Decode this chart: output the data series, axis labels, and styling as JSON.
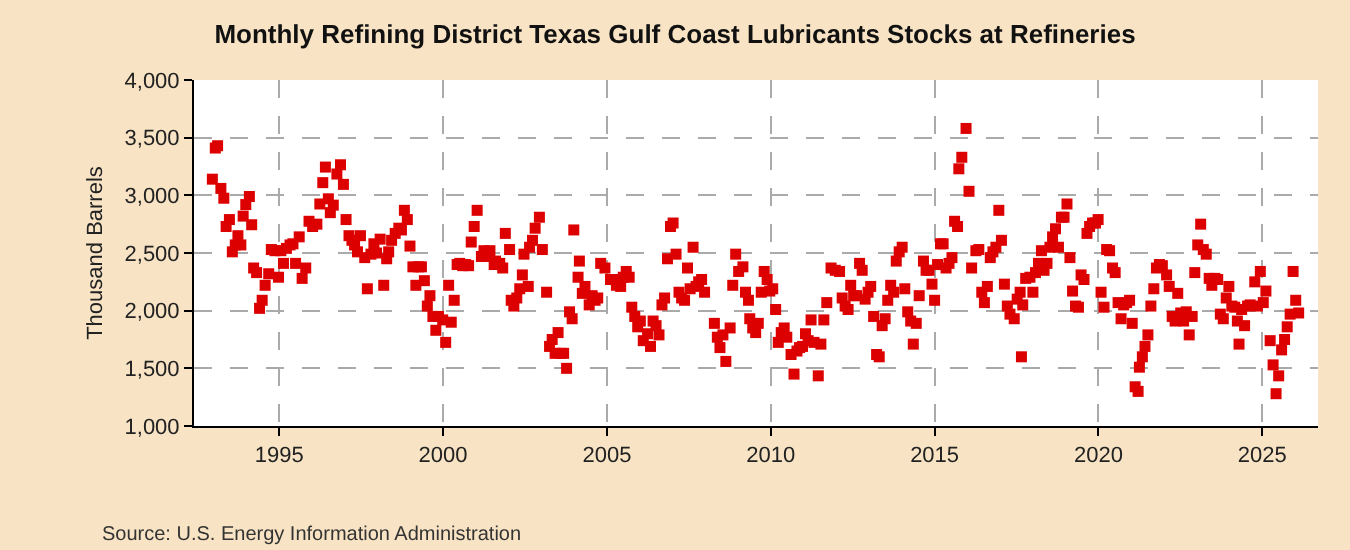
{
  "chart_data": {
    "type": "scatter",
    "title": "Monthly Refining District Texas Gulf Coast Lubricants Stocks at Refineries",
    "ylabel": "Thousand Barrels",
    "annotations": [
      "Source: U.S. Energy Information Administration"
    ],
    "marker": "square",
    "grid": true,
    "xlim": [
      1992.4,
      2026.7
    ],
    "xticks": [
      1995,
      2000,
      2005,
      2010,
      2015,
      2020,
      2025
    ],
    "ylim": [
      1000,
      4000
    ],
    "yticks": [
      {
        "value": 1000,
        "label": "1,000"
      },
      {
        "value": 1500,
        "label": "1,500"
      },
      {
        "value": 2000,
        "label": "2,000"
      },
      {
        "value": 2500,
        "label": "2,500"
      },
      {
        "value": 3000,
        "label": "3,000"
      },
      {
        "value": 3500,
        "label": "3,500"
      },
      {
        "value": 4000,
        "label": "4,000"
      }
    ],
    "series": [
      {
        "color": "#dd0000",
        "x": [
          1992.96,
          1993.05,
          1993.12,
          1993.22,
          1993.31,
          1993.38,
          1993.48,
          1993.57,
          1993.66,
          1993.74,
          1993.83,
          1993.9,
          1993.98,
          1994.09,
          1994.16,
          1994.22,
          1994.31,
          1994.4,
          1994.48,
          1994.57,
          1994.68,
          1994.76,
          1994.87,
          1994.98,
          1995.05,
          1995.13,
          1995.22,
          1995.33,
          1995.42,
          1995.5,
          1995.61,
          1995.7,
          1995.81,
          1995.91,
          1996.02,
          1996.15,
          1996.24,
          1996.33,
          1996.41,
          1996.5,
          1996.56,
          1996.65,
          1996.76,
          1996.87,
          1996.96,
          1997.04,
          1997.13,
          1997.22,
          1997.3,
          1997.39,
          1997.48,
          1997.61,
          1997.69,
          1997.8,
          1997.89,
          1997.97,
          1998.08,
          1998.19,
          1998.28,
          1998.34,
          1998.43,
          1998.54,
          1998.65,
          1998.73,
          1998.82,
          1998.91,
          1998.99,
          1999.08,
          1999.17,
          1999.25,
          1999.34,
          1999.43,
          1999.52,
          1999.6,
          1999.69,
          1999.78,
          1999.86,
          1999.99,
          2000.08,
          2000.17,
          2000.25,
          2000.34,
          2000.43,
          2000.51,
          2000.6,
          2000.69,
          2000.78,
          2000.86,
          2000.95,
          2001.04,
          2001.17,
          2001.25,
          2001.34,
          2001.43,
          2001.56,
          2001.6,
          2001.73,
          2001.82,
          2001.9,
          2002.03,
          2002.08,
          2002.16,
          2002.25,
          2002.34,
          2002.42,
          2002.47,
          2002.6,
          2002.64,
          2002.73,
          2002.81,
          2002.94,
          2003.03,
          2003.16,
          2003.25,
          2003.33,
          2003.42,
          2003.51,
          2003.6,
          2003.68,
          2003.77,
          2003.86,
          2003.94,
          2003.99,
          2004.12,
          2004.16,
          2004.25,
          2004.33,
          2004.46,
          2004.55,
          2004.64,
          2004.72,
          2004.81,
          2004.94,
          2005.11,
          2005.29,
          2005.37,
          2005.42,
          2005.5,
          2005.59,
          2005.68,
          2005.76,
          2005.85,
          2005.94,
          2006.02,
          2006.11,
          2006.24,
          2006.33,
          2006.41,
          2006.5,
          2006.59,
          2006.68,
          2006.76,
          2006.85,
          2006.94,
          2007.02,
          2007.11,
          2007.2,
          2007.28,
          2007.37,
          2007.46,
          2007.54,
          2007.63,
          2007.72,
          2007.8,
          2007.89,
          2007.98,
          2008.28,
          2008.37,
          2008.45,
          2008.54,
          2008.63,
          2008.76,
          2008.84,
          2008.93,
          2009.02,
          2009.15,
          2009.23,
          2009.32,
          2009.36,
          2009.45,
          2009.54,
          2009.62,
          2009.71,
          2009.8,
          2009.89,
          2009.97,
          2010.06,
          2010.15,
          2010.23,
          2010.32,
          2010.41,
          2010.49,
          2010.62,
          2010.71,
          2010.8,
          2010.88,
          2010.97,
          2011.06,
          2011.14,
          2011.23,
          2011.32,
          2011.45,
          2011.53,
          2011.62,
          2011.71,
          2011.84,
          2011.97,
          2012.1,
          2012.18,
          2012.27,
          2012.36,
          2012.44,
          2012.53,
          2012.62,
          2012.71,
          2012.79,
          2012.88,
          2012.97,
          2013.05,
          2013.14,
          2013.23,
          2013.31,
          2013.4,
          2013.49,
          2013.57,
          2013.66,
          2013.75,
          2013.83,
          2013.92,
          2014.01,
          2014.09,
          2014.18,
          2014.27,
          2014.35,
          2014.44,
          2014.53,
          2014.66,
          2014.74,
          2014.83,
          2014.92,
          2015.0,
          2015.09,
          2015.18,
          2015.26,
          2015.35,
          2015.44,
          2015.53,
          2015.61,
          2015.7,
          2015.74,
          2015.83,
          2015.96,
          2016.05,
          2016.13,
          2016.26,
          2016.35,
          2016.44,
          2016.52,
          2016.61,
          2016.7,
          2016.78,
          2016.87,
          2016.96,
          2017.04,
          2017.13,
          2017.22,
          2017.3,
          2017.43,
          2017.52,
          2017.61,
          2017.65,
          2017.69,
          2017.78,
          2017.91,
          2018.0,
          2018.08,
          2018.17,
          2018.26,
          2018.34,
          2018.43,
          2018.52,
          2018.6,
          2018.69,
          2018.78,
          2018.87,
          2018.95,
          2019.04,
          2019.13,
          2019.21,
          2019.3,
          2019.39,
          2019.47,
          2019.56,
          2019.65,
          2019.73,
          2019.82,
          2019.91,
          2019.99,
          2020.08,
          2020.17,
          2020.25,
          2020.34,
          2020.43,
          2020.51,
          2020.6,
          2020.69,
          2020.77,
          2020.86,
          2020.95,
          2021.03,
          2021.12,
          2021.21,
          2021.25,
          2021.34,
          2021.42,
          2021.51,
          2021.6,
          2021.69,
          2021.77,
          2021.86,
          2021.95,
          2022.08,
          2022.16,
          2022.25,
          2022.34,
          2022.42,
          2022.51,
          2022.6,
          2022.68,
          2022.77,
          2022.86,
          2022.94,
          2023.03,
          2023.12,
          2023.2,
          2023.29,
          2023.38,
          2023.46,
          2023.55,
          2023.64,
          2023.72,
          2023.81,
          2023.9,
          2023.98,
          2024.07,
          2024.16,
          2024.24,
          2024.29,
          2024.37,
          2024.46,
          2024.55,
          2024.63,
          2024.77,
          2024.85,
          2024.94,
          2025.03,
          2025.11,
          2025.24,
          2025.33,
          2025.42,
          2025.5,
          2025.59,
          2025.68,
          2025.76,
          2025.85,
          2025.94,
          2026.02,
          2026.11
        ],
        "values": [
          3140,
          3410,
          3430,
          3060,
          2975,
          2730,
          2790,
          2510,
          2570,
          2650,
          2570,
          2820,
          2920,
          2990,
          2745,
          2370,
          2330,
          2020,
          2090,
          2220,
          2320,
          2530,
          2520,
          2290,
          2520,
          2410,
          2540,
          2570,
          2580,
          2410,
          2640,
          2280,
          2370,
          2775,
          2730,
          2750,
          2925,
          3110,
          3245,
          2970,
          2850,
          2915,
          3185,
          3265,
          3095,
          2790,
          2650,
          2610,
          2570,
          2510,
          2650,
          2460,
          2190,
          2490,
          2580,
          2500,
          2620,
          2220,
          2450,
          2510,
          2610,
          2670,
          2715,
          2700,
          2870,
          2790,
          2560,
          2380,
          2220,
          2380,
          2380,
          2260,
          2040,
          2130,
          1950,
          1830,
          1950,
          1920,
          1725,
          2220,
          1900,
          2090,
          2400,
          2410,
          2390,
          2400,
          2390,
          2595,
          2730,
          2870,
          2470,
          2520,
          2470,
          2520,
          2400,
          2430,
          2410,
          2370,
          2670,
          2530,
          2090,
          2040,
          2110,
          2190,
          2310,
          2490,
          2210,
          2550,
          2610,
          2715,
          2810,
          2530,
          2160,
          1690,
          1750,
          1630,
          1810,
          1630,
          1630,
          1500,
          1990,
          1930,
          2700,
          2290,
          2430,
          2150,
          2210,
          2050,
          2130,
          2090,
          2110,
          2410,
          2370,
          2270,
          2220,
          2270,
          2210,
          2290,
          2340,
          2290,
          2030,
          1950,
          1860,
          1910,
          1740,
          1800,
          1690,
          1910,
          1870,
          1790,
          2050,
          2110,
          2450,
          2730,
          2760,
          2490,
          2160,
          2110,
          2090,
          2370,
          2190,
          2550,
          2210,
          2250,
          2270,
          2160,
          1890,
          1770,
          1680,
          1790,
          1560,
          1850,
          2220,
          2490,
          2340,
          2380,
          2160,
          2090,
          1930,
          1850,
          1810,
          1890,
          2160,
          2340,
          2270,
          2170,
          2190,
          2010,
          1725,
          1810,
          1850,
          1770,
          1620,
          1450,
          1650,
          1680,
          1690,
          1800,
          1740,
          1920,
          1725,
          1435,
          1710,
          1920,
          2070,
          2370,
          2350,
          2340,
          2110,
          2040,
          2010,
          2220,
          2130,
          2130,
          2410,
          2350,
          2100,
          2160,
          2210,
          1950,
          1620,
          1600,
          1870,
          1930,
          2090,
          2220,
          2160,
          2430,
          2510,
          2550,
          2190,
          1990,
          1910,
          1710,
          1890,
          2130,
          2430,
          2350,
          2350,
          2230,
          2090,
          2400,
          2580,
          2580,
          2370,
          2410,
          2460,
          2775,
          2730,
          3230,
          3330,
          3580,
          3035,
          2370,
          2520,
          2530,
          2160,
          2070,
          2210,
          2460,
          2510,
          2550,
          2870,
          2610,
          2230,
          2040,
          1970,
          1930,
          2100,
          2160,
          1600,
          2050,
          2280,
          2290,
          2160,
          2330,
          2410,
          2520,
          2350,
          2410,
          2550,
          2640,
          2710,
          2550,
          2810,
          2810,
          2925,
          2460,
          2170,
          2040,
          2030,
          2310,
          2270,
          2670,
          2730,
          2760,
          2760,
          2790,
          2160,
          2030,
          2530,
          2520,
          2370,
          2330,
          2070,
          1930,
          2050,
          2070,
          2090,
          1890,
          1340,
          1300,
          1510,
          1600,
          1690,
          1790,
          2040,
          2190,
          2370,
          2400,
          2390,
          2310,
          2210,
          1950,
          1910,
          2150,
          1980,
          1910,
          1990,
          1790,
          1950,
          2330,
          2570,
          2750,
          2530,
          2490,
          2280,
          2220,
          2280,
          2270,
          1970,
          1930,
          2110,
          2210,
          2040,
          2030,
          1910,
          1710,
          2010,
          1870,
          2040,
          2050,
          2250,
          2040,
          2340,
          2070,
          2170,
          1740,
          1530,
          1280,
          1435,
          1660,
          1750,
          1860,
          1970,
          2340,
          2090,
          1980
        ]
      }
    ]
  }
}
